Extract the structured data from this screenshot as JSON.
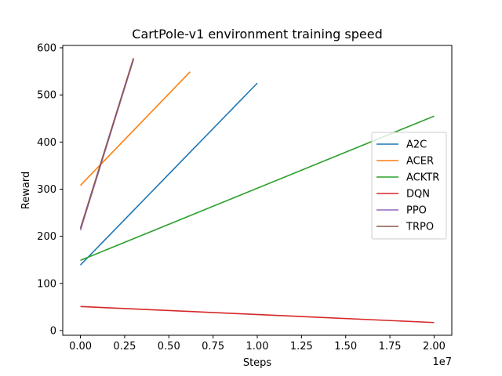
{
  "chart_data": {
    "type": "line",
    "title": "CartPole-v1 environment training speed",
    "xlabel": "Steps",
    "ylabel": "Reward",
    "x_offset_label": "1e7",
    "xlim": [
      -1000000,
      21000000
    ],
    "ylim": [
      -10,
      605
    ],
    "x_ticks": [
      0,
      2500000,
      5000000,
      7500000,
      10000000,
      12500000,
      15000000,
      17500000,
      20000000
    ],
    "x_tick_labels": [
      "0.00",
      "0.25",
      "0.50",
      "0.75",
      "1.00",
      "1.25",
      "1.50",
      "1.75",
      "2.00"
    ],
    "y_ticks": [
      0,
      100,
      200,
      300,
      400,
      500,
      600
    ],
    "y_tick_labels": [
      "0",
      "100",
      "200",
      "300",
      "400",
      "500",
      "600"
    ],
    "grid": false,
    "legend_position": "center-right",
    "series": [
      {
        "name": "A2C",
        "color": "#1f77b4",
        "x": [
          0,
          10000000
        ],
        "y": [
          139,
          525
        ]
      },
      {
        "name": "ACER",
        "color": "#ff7f0e",
        "x": [
          0,
          6200000
        ],
        "y": [
          308,
          549
        ]
      },
      {
        "name": "ACKTR",
        "color": "#2ca02c",
        "x": [
          0,
          20000000
        ],
        "y": [
          149,
          455
        ]
      },
      {
        "name": "DQN",
        "color": "#d62728",
        "x": [
          0,
          20000000
        ],
        "y": [
          51,
          17
        ]
      },
      {
        "name": "PPO",
        "color": "#9467bd",
        "x": [
          0,
          3000000
        ],
        "y": [
          213,
          575
        ]
      },
      {
        "name": "TRPO",
        "color": "#8c564b",
        "x": [
          0,
          3000000
        ],
        "y": [
          217,
          578
        ]
      }
    ]
  }
}
